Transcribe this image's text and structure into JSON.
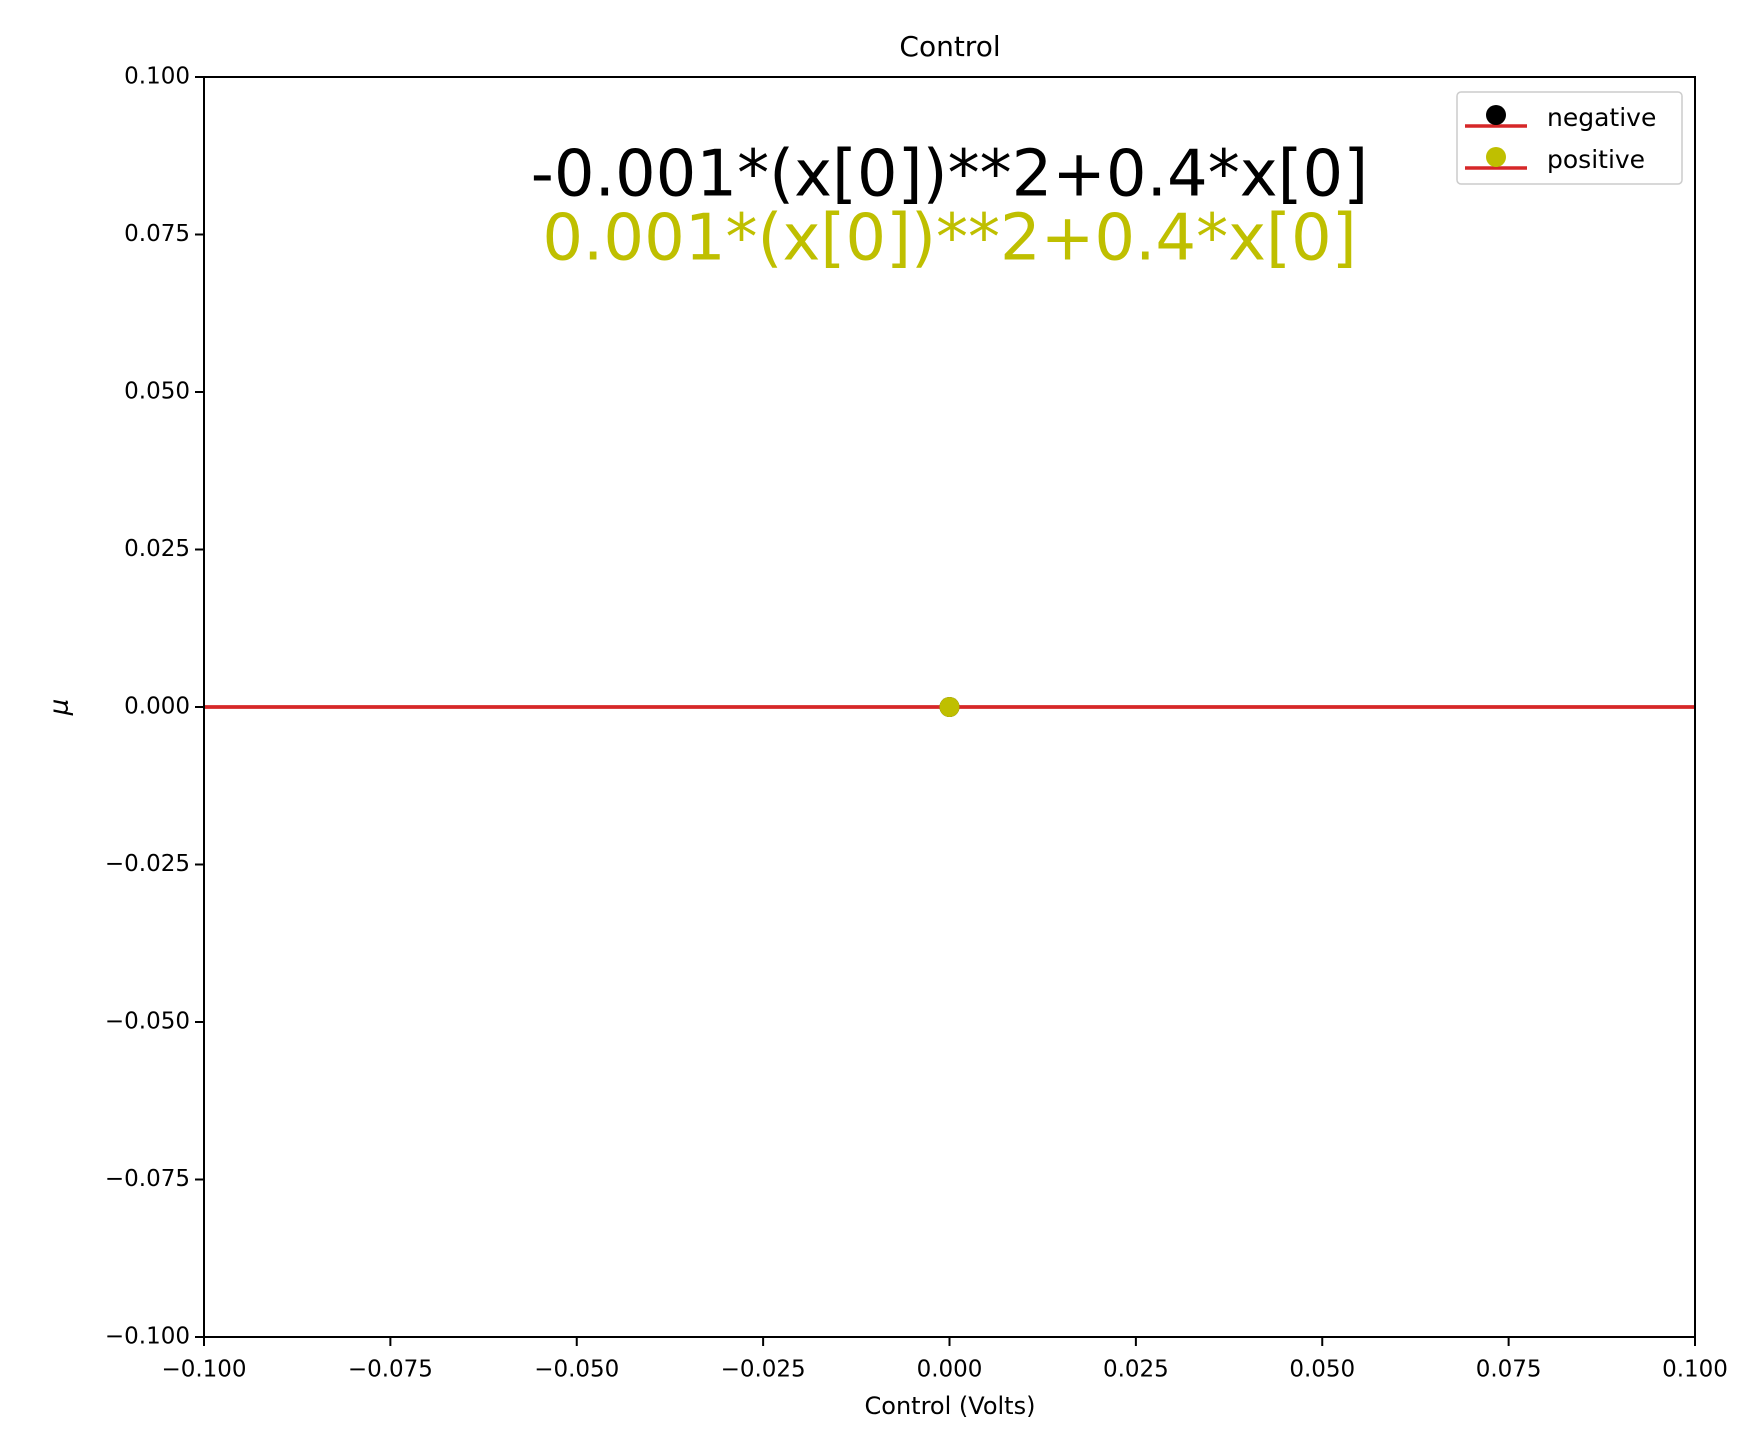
{
  "chart_data": {
    "type": "scatter",
    "title": "Control",
    "x_label": "Control (Volts)",
    "y_label": "μ",
    "xlim": [
      -0.1,
      0.1
    ],
    "ylim": [
      -0.1,
      0.1
    ],
    "xticks": [
      {
        "value": -0.1,
        "label": "−0.100"
      },
      {
        "value": -0.075,
        "label": "−0.075"
      },
      {
        "value": -0.05,
        "label": "−0.050"
      },
      {
        "value": -0.025,
        "label": "−0.025"
      },
      {
        "value": 0,
        "label": "0.000"
      },
      {
        "value": 0.025,
        "label": "0.025"
      },
      {
        "value": 0.05,
        "label": "0.050"
      },
      {
        "value": 0.075,
        "label": "0.075"
      },
      {
        "value": 0.1,
        "label": "0.100"
      }
    ],
    "yticks": [
      {
        "value": -0.1,
        "label": "−0.100"
      },
      {
        "value": -0.075,
        "label": "−0.075"
      },
      {
        "value": -0.05,
        "label": "−0.050"
      },
      {
        "value": -0.025,
        "label": "−0.025"
      },
      {
        "value": 0,
        "label": "0.000"
      },
      {
        "value": 0.025,
        "label": "0.025"
      },
      {
        "value": 0.05,
        "label": "0.050"
      },
      {
        "value": 0.075,
        "label": "0.075"
      },
      {
        "value": 0.1,
        "label": "0.100"
      }
    ],
    "grid": false,
    "legend": "upper right",
    "series": [
      {
        "name": "negative",
        "color": "#000000",
        "x": [
          0
        ],
        "values": [
          0
        ],
        "line": {
          "y": 0,
          "color": "#d62728"
        }
      },
      {
        "name": "positive",
        "color": "#bfbf00",
        "x": [
          0
        ],
        "values": [
          0
        ],
        "line": {
          "y": 0,
          "color": "#d62728"
        }
      }
    ],
    "annotations": [
      {
        "text": "-0.001*(x[0])**2+0.4*x[0]",
        "color": "#000000"
      },
      {
        "text": "0.001*(x[0])**2+0.4*x[0]",
        "color": "#bfbf00"
      }
    ]
  }
}
